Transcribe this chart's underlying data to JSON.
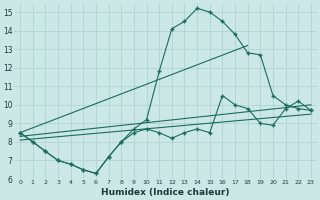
{
  "xlabel": "Humidex (Indice chaleur)",
  "xlim": [
    -0.5,
    23.5
  ],
  "ylim": [
    6,
    15.5
  ],
  "xticks": [
    0,
    1,
    2,
    3,
    4,
    5,
    6,
    7,
    8,
    9,
    10,
    11,
    12,
    13,
    14,
    15,
    16,
    17,
    18,
    19,
    20,
    21,
    22,
    23
  ],
  "yticks": [
    6,
    7,
    8,
    9,
    10,
    11,
    12,
    13,
    14,
    15
  ],
  "bg_color": "#cce8e6",
  "grid_color": "#aad0ce",
  "line_color": "#1a6b5e",
  "curve1_x": [
    0,
    1,
    2,
    3,
    4,
    5,
    6,
    7,
    8,
    9,
    10,
    11,
    12,
    13,
    14,
    15,
    16,
    17,
    18,
    19,
    20,
    21,
    22,
    23
  ],
  "curve1_y": [
    8.5,
    8.0,
    7.5,
    7.0,
    6.8,
    6.5,
    6.3,
    7.2,
    8.0,
    8.7,
    9.2,
    11.8,
    14.1,
    14.5,
    15.2,
    15.0,
    14.5,
    13.8,
    12.8,
    12.7,
    10.5,
    10.0,
    9.8,
    9.7
  ],
  "curve2_x": [
    0,
    1,
    2,
    3,
    4,
    5,
    6,
    7,
    8,
    9,
    10,
    11,
    12,
    13,
    14,
    15,
    16,
    17,
    18,
    19,
    20,
    21,
    22,
    23
  ],
  "curve2_y": [
    8.5,
    8.0,
    7.5,
    7.0,
    6.8,
    6.5,
    6.3,
    7.2,
    8.0,
    8.5,
    8.7,
    8.5,
    8.2,
    8.5,
    8.7,
    8.5,
    10.5,
    10.0,
    9.8,
    9.0,
    8.9,
    9.8,
    10.2,
    9.7
  ],
  "trend1_x": [
    0,
    18
  ],
  "trend1_y": [
    8.5,
    13.2
  ],
  "trend2_x": [
    0,
    23
  ],
  "trend2_y": [
    8.3,
    10.0
  ],
  "trend3_x": [
    0,
    23
  ],
  "trend3_y": [
    8.1,
    9.5
  ]
}
